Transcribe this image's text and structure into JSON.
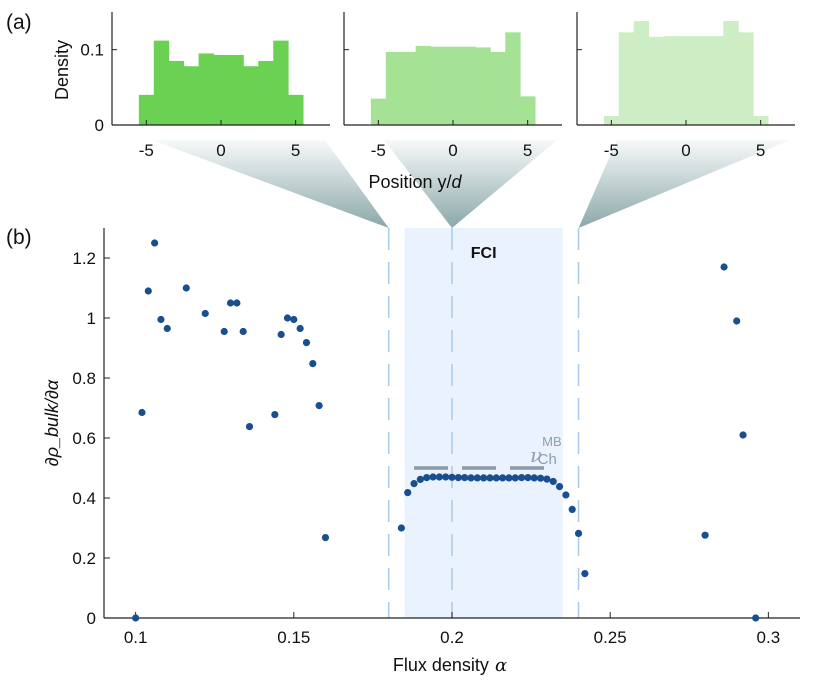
{
  "colors": {
    "hist1": "#6ad152",
    "hist2": "#a6e295",
    "hist3": "#cdeec4",
    "funnel": "#7e9ea0",
    "fci_band": "#eaf2fd",
    "dashed_line": "#aecdeb",
    "dot": "#194f8f",
    "chern": "#8a9aa6",
    "chern_label": "#8aa0b3"
  },
  "chart_data": [
    {
      "id": "a",
      "panel_label": "(a)",
      "type": "histogram",
      "ylabel": "Density",
      "xlabel_prefix": "Position y/",
      "xlabel_var": "d",
      "yticks": [
        0,
        0.1
      ],
      "ytick_labels": [
        "0",
        "0.1"
      ],
      "xticks": [
        -5,
        0,
        5
      ],
      "xtick_labels": [
        "-5",
        "0",
        "5"
      ],
      "xlim": [
        -7.3,
        7.3
      ],
      "ylim": [
        0,
        0.15
      ],
      "bin_edges": [
        -5.5,
        -4.5,
        -3.5,
        -2.5,
        -1.5,
        -0.5,
        0.5,
        1.5,
        2.5,
        3.5,
        4.5,
        5.5
      ],
      "series": [
        {
          "name": "hist-1",
          "alpha_link": 0.18,
          "values": [
            0.04,
            0.112,
            0.085,
            0.078,
            0.095,
            0.093,
            0.093,
            0.078,
            0.085,
            0.112,
            0.04
          ]
        },
        {
          "name": "hist-2",
          "alpha_link": 0.2,
          "values": [
            0.035,
            0.097,
            0.097,
            0.105,
            0.104,
            0.104,
            0.104,
            0.103,
            0.097,
            0.123,
            0.038
          ]
        },
        {
          "name": "hist-3",
          "alpha_link": 0.24,
          "values": [
            0.012,
            0.123,
            0.138,
            0.117,
            0.118,
            0.118,
            0.118,
            0.118,
            0.138,
            0.123,
            0.012
          ]
        }
      ]
    },
    {
      "id": "b",
      "panel_label": "(b)",
      "type": "scatter",
      "title": "FCI",
      "xlabel": "Flux density",
      "xlabel_symbol": "α",
      "ylabel": "∂ρ_bulk/∂α",
      "xlim": [
        0.09,
        0.31
      ],
      "ylim": [
        0,
        1.3
      ],
      "xticks": [
        0.1,
        0.15,
        0.2,
        0.25,
        0.3
      ],
      "xtick_labels": [
        "0.1",
        "0.15",
        "0.2",
        "0.25",
        "0.3"
      ],
      "yticks": [
        0,
        0.2,
        0.4,
        0.6,
        0.8,
        1,
        1.2
      ],
      "ytick_labels": [
        "0",
        "0.2",
        "0.4",
        "0.6",
        "0.8",
        "1",
        "1.2"
      ],
      "fci_band": [
        0.185,
        0.235
      ],
      "dashed_lines": [
        0.18,
        0.2,
        0.24
      ],
      "chern_level": 0.5,
      "chern_label": {
        "base": "ν",
        "sup": "MB",
        "sub": "Ch"
      },
      "points": [
        [
          0.1,
          0.0
        ],
        [
          0.102,
          0.685
        ],
        [
          0.104,
          1.09
        ],
        [
          0.106,
          1.25
        ],
        [
          0.108,
          0.995
        ],
        [
          0.11,
          0.965
        ],
        [
          0.116,
          1.1
        ],
        [
          0.122,
          1.015
        ],
        [
          0.128,
          0.955
        ],
        [
          0.13,
          1.05
        ],
        [
          0.132,
          1.05
        ],
        [
          0.134,
          0.955
        ],
        [
          0.136,
          0.638
        ],
        [
          0.144,
          0.678
        ],
        [
          0.146,
          0.945
        ],
        [
          0.148,
          1.0
        ],
        [
          0.15,
          0.995
        ],
        [
          0.152,
          0.965
        ],
        [
          0.154,
          0.918
        ],
        [
          0.156,
          0.848
        ],
        [
          0.158,
          0.708
        ],
        [
          0.16,
          0.268
        ],
        [
          0.184,
          0.3
        ],
        [
          0.186,
          0.418
        ],
        [
          0.188,
          0.448
        ],
        [
          0.19,
          0.462
        ],
        [
          0.192,
          0.468
        ],
        [
          0.194,
          0.47
        ],
        [
          0.196,
          0.47
        ],
        [
          0.198,
          0.47
        ],
        [
          0.2,
          0.469
        ],
        [
          0.202,
          0.468
        ],
        [
          0.204,
          0.468
        ],
        [
          0.206,
          0.467
        ],
        [
          0.208,
          0.467
        ],
        [
          0.21,
          0.467
        ],
        [
          0.212,
          0.467
        ],
        [
          0.214,
          0.467
        ],
        [
          0.216,
          0.467
        ],
        [
          0.218,
          0.467
        ],
        [
          0.22,
          0.467
        ],
        [
          0.222,
          0.468
        ],
        [
          0.224,
          0.468
        ],
        [
          0.226,
          0.467
        ],
        [
          0.228,
          0.466
        ],
        [
          0.23,
          0.463
        ],
        [
          0.232,
          0.455
        ],
        [
          0.234,
          0.438
        ],
        [
          0.236,
          0.41
        ],
        [
          0.238,
          0.362
        ],
        [
          0.24,
          0.282
        ],
        [
          0.242,
          0.148
        ],
        [
          0.28,
          0.276
        ],
        [
          0.286,
          1.17
        ],
        [
          0.29,
          0.99
        ],
        [
          0.292,
          0.61
        ],
        [
          0.296,
          0.0
        ]
      ]
    }
  ]
}
